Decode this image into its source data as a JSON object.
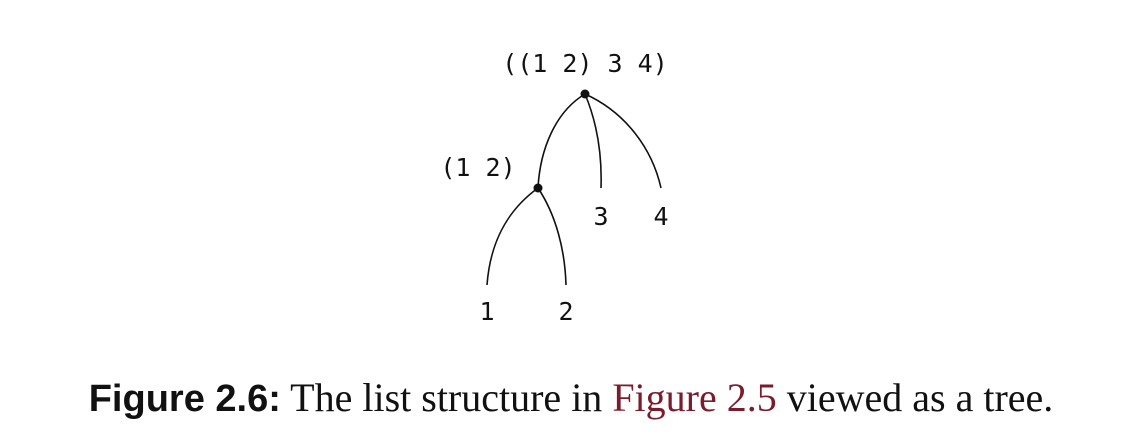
{
  "diagram": {
    "root_label": "((1 2) 3 4)",
    "sublist_label": "(1 2)",
    "leaves": {
      "one": "1",
      "two": "2",
      "three": "3",
      "four": "4"
    }
  },
  "caption": {
    "label": "Figure 2.6:",
    "text_before": " The list structure in ",
    "reference": "Figure 2.5",
    "text_after": " viewed as a tree."
  },
  "colors": {
    "ink": "#111111",
    "reference_link": "#7a1c2c"
  }
}
